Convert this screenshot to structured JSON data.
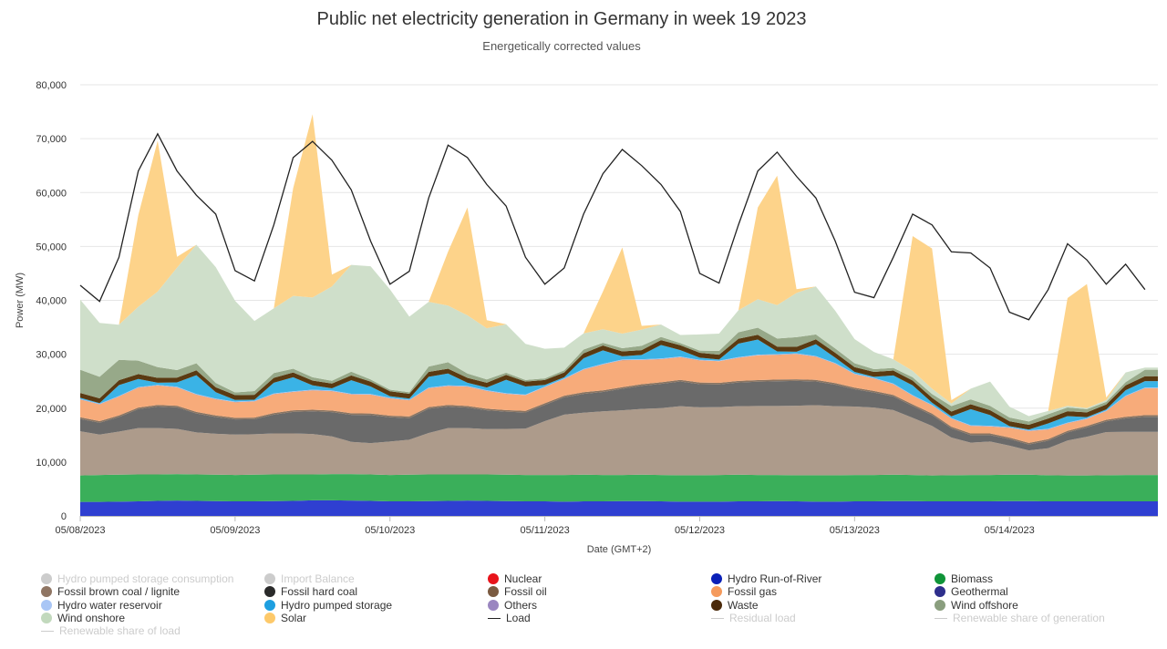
{
  "title": "Public net electricity generation in Germany in week 19 2023",
  "subtitle": "Energetically corrected values",
  "chart_data": {
    "type": "area",
    "stacked": true,
    "xlabel": "Date (GMT+2)",
    "ylabel": "Power (MW)",
    "ylim": [
      0,
      80000
    ],
    "yticks": [
      "0",
      "10,000",
      "20,000",
      "30,000",
      "40,000",
      "50,000",
      "60,000",
      "70,000",
      "80,000"
    ],
    "xticks": [
      "05/08/2023",
      "05/09/2023",
      "05/10/2023",
      "05/11/2023",
      "05/12/2023",
      "05/13/2023",
      "05/14/2023"
    ],
    "x_hours": [
      0,
      3,
      6,
      9,
      12,
      15,
      18,
      21,
      24,
      27,
      30,
      33,
      36,
      39,
      42,
      45,
      48,
      51,
      54,
      57,
      60,
      63,
      66,
      69,
      72,
      75,
      78,
      81,
      84,
      87,
      90,
      93,
      96,
      99,
      102,
      105,
      108,
      111,
      114,
      117,
      120,
      123,
      126,
      129,
      132,
      135,
      138,
      141,
      144,
      147,
      150,
      153,
      156,
      159,
      162,
      165
    ],
    "series": [
      {
        "name": "Hydro Run-of-River",
        "color": "#2f3fd1",
        "values": [
          2600,
          2600,
          2650,
          2700,
          2800,
          2850,
          2800,
          2750,
          2700,
          2700,
          2750,
          2800,
          2900,
          2900,
          2850,
          2800,
          2700,
          2700,
          2750,
          2800,
          2850,
          2800,
          2750,
          2700,
          2700,
          2650,
          2700,
          2700,
          2750,
          2750,
          2700,
          2650,
          2650,
          2650,
          2700,
          2700,
          2750,
          2700,
          2650,
          2650,
          2700,
          2700,
          2750,
          2750,
          2700,
          2700,
          2700,
          2700,
          2750,
          2750,
          2700,
          2700,
          2700,
          2700,
          2700,
          2700
        ]
      },
      {
        "name": "Biomass",
        "color": "#3aaf5a",
        "values": [
          4900,
          5000,
          5000,
          5000,
          4900,
          4900,
          4900,
          4900,
          4900,
          4950,
          4950,
          4900,
          4800,
          4850,
          4900,
          4900,
          4900,
          4950,
          4950,
          4900,
          4850,
          4900,
          4900,
          4900,
          4900,
          4950,
          4950,
          4900,
          4850,
          4900,
          4900,
          4900,
          4900,
          4950,
          4950,
          4900,
          4850,
          4850,
          4900,
          4900,
          4900,
          4900,
          4900,
          4850,
          4800,
          4850,
          4900,
          4900,
          4900,
          4900,
          4850,
          4800,
          4800,
          4850,
          4900,
          4900
        ]
      },
      {
        "name": "Fossil brown coal / lignite",
        "color": "#ad9b8b",
        "values": [
          8200,
          7500,
          8000,
          8600,
          8600,
          8400,
          7800,
          7600,
          7500,
          7500,
          7600,
          7600,
          7500,
          7000,
          6000,
          5800,
          6200,
          6500,
          7700,
          8600,
          8600,
          8400,
          8500,
          8600,
          10000,
          11200,
          11500,
          11800,
          12000,
          12200,
          12400,
          12800,
          12600,
          12600,
          12700,
          12800,
          12800,
          12900,
          13000,
          12800,
          12700,
          12500,
          12000,
          10600,
          9200,
          7000,
          6000,
          6200,
          5400,
          4500,
          5000,
          6500,
          7200,
          8000,
          8000,
          8000
        ]
      },
      {
        "name": "Fossil hard coal",
        "color": "#6a6a6a",
        "values": [
          2300,
          2200,
          2700,
          3500,
          4000,
          4000,
          3500,
          3100,
          2800,
          2800,
          3500,
          4000,
          4200,
          4500,
          5000,
          5200,
          4500,
          4000,
          4500,
          4000,
          3800,
          3500,
          3200,
          3000,
          3000,
          3200,
          3500,
          3600,
          4000,
          4300,
          4500,
          4600,
          4300,
          4200,
          4400,
          4500,
          4600,
          4600,
          4400,
          4000,
          3200,
          2800,
          2500,
          2200,
          2000,
          1700,
          1400,
          1200,
          1200,
          1100,
          1400,
          1500,
          1700,
          2000,
          2500,
          2800
        ]
      },
      {
        "name": "Fossil oil",
        "color": "#8a7461",
        "values": [
          300,
          300,
          300,
          300,
          300,
          300,
          300,
          300,
          300,
          300,
          300,
          300,
          300,
          300,
          300,
          300,
          300,
          300,
          300,
          300,
          300,
          300,
          300,
          300,
          300,
          300,
          300,
          300,
          300,
          300,
          300,
          300,
          300,
          300,
          300,
          300,
          300,
          300,
          300,
          300,
          300,
          300,
          300,
          300,
          300,
          300,
          300,
          300,
          300,
          300,
          300,
          300,
          300,
          300,
          300,
          300
        ]
      },
      {
        "name": "Fossil gas",
        "color": "#f7ab7a",
        "values": [
          3300,
          3100,
          3500,
          3700,
          3600,
          3400,
          3200,
          3000,
          2900,
          3000,
          3500,
          3400,
          3600,
          3600,
          3500,
          3500,
          3200,
          3000,
          3500,
          3500,
          3600,
          3300,
          3000,
          2900,
          3000,
          3100,
          4200,
          4800,
          5000,
          4500,
          4300,
          4200,
          4100,
          4000,
          4300,
          4600,
          4600,
          4700,
          4300,
          3600,
          2500,
          2300,
          2000,
          1600,
          1500,
          1500,
          1400,
          1300,
          1800,
          2200,
          1800,
          1400,
          1300,
          1600,
          3800,
          5000
        ]
      },
      {
        "name": "Geothermal",
        "color": "#2e2f8c",
        "values": [
          20,
          20,
          20,
          20,
          20,
          20,
          20,
          20,
          20,
          20,
          20,
          20,
          20,
          20,
          20,
          20,
          20,
          20,
          20,
          20,
          20,
          20,
          20,
          20,
          20,
          20,
          20,
          20,
          20,
          20,
          20,
          20,
          20,
          20,
          20,
          20,
          20,
          20,
          20,
          20,
          20,
          20,
          20,
          20,
          20,
          20,
          20,
          20,
          20,
          20,
          20,
          20,
          20,
          20,
          20,
          20
        ]
      },
      {
        "name": "Hydro water reservoir",
        "color": "#a9c6f5",
        "values": [
          100,
          100,
          100,
          100,
          100,
          100,
          100,
          100,
          100,
          100,
          100,
          100,
          100,
          100,
          100,
          100,
          100,
          100,
          100,
          100,
          100,
          100,
          100,
          100,
          100,
          100,
          100,
          100,
          100,
          100,
          100,
          100,
          100,
          100,
          100,
          100,
          100,
          100,
          100,
          100,
          100,
          100,
          100,
          100,
          100,
          100,
          100,
          100,
          100,
          100,
          100,
          100,
          100,
          100,
          100,
          100
        ]
      },
      {
        "name": "Hydro pumped storage",
        "color": "#3ab3e6",
        "values": [
          200,
          100,
          2000,
          1500,
          400,
          800,
          3500,
          1200,
          300,
          200,
          2000,
          2600,
          800,
          400,
          2500,
          1400,
          300,
          200,
          2000,
          2200,
          600,
          500,
          2500,
          1500,
          300,
          200,
          2000,
          2500,
          600,
          800,
          2500,
          1200,
          400,
          200,
          2500,
          2800,
          500,
          300,
          2200,
          1000,
          300,
          200,
          1500,
          1800,
          400,
          300,
          3000,
          2000,
          200,
          150,
          1000,
          1200,
          200,
          200,
          1000,
          1200
        ]
      },
      {
        "name": "Waste",
        "color": "#5a3a12",
        "values": [
          900,
          900,
          900,
          900,
          900,
          900,
          900,
          900,
          900,
          900,
          900,
          900,
          900,
          900,
          900,
          900,
          900,
          900,
          900,
          900,
          900,
          900,
          900,
          900,
          900,
          900,
          900,
          900,
          900,
          900,
          900,
          900,
          900,
          900,
          900,
          900,
          900,
          900,
          900,
          900,
          900,
          900,
          900,
          900,
          900,
          900,
          900,
          900,
          900,
          900,
          900,
          900,
          900,
          900,
          900,
          900
        ]
      },
      {
        "name": "Wind offshore",
        "color": "#97a989",
        "values": [
          4300,
          4000,
          3800,
          2500,
          2000,
          1400,
          1300,
          800,
          500,
          700,
          900,
          700,
          600,
          500,
          700,
          400,
          300,
          300,
          1000,
          1200,
          800,
          600,
          400,
          300,
          300,
          400,
          700,
          500,
          600,
          800,
          600,
          400,
          400,
          700,
          1200,
          1300,
          1500,
          1800,
          900,
          800,
          700,
          500,
          500,
          600,
          700,
          1000,
          900,
          800,
          700,
          600,
          800,
          700,
          600,
          500,
          600,
          1200
        ]
      },
      {
        "name": "Wind onshore",
        "color": "#cfdfca",
        "values": [
          13000,
          10000,
          6500,
          10000,
          14000,
          19000,
          22000,
          21500,
          17000,
          13000,
          12000,
          13500,
          14800,
          17500,
          19800,
          21000,
          18600,
          14000,
          12000,
          10500,
          10800,
          9500,
          9000,
          6700,
          5500,
          4200,
          3000,
          2500,
          2700,
          3000,
          2300,
          1500,
          3000,
          3200,
          4100,
          5300,
          6200,
          8200,
          8900,
          7000,
          4500,
          3200,
          1600,
          1200,
          1000,
          500,
          2000,
          4500,
          2000,
          1000,
          600,
          300,
          200,
          300,
          1800,
          400
        ]
      },
      {
        "name": "Solar",
        "color": "#fdd38a",
        "values": [
          0,
          0,
          0,
          17000,
          28000,
          2000,
          0,
          0,
          0,
          0,
          0,
          20000,
          34000,
          2200,
          0,
          0,
          0,
          0,
          0,
          10000,
          20000,
          1500,
          0,
          0,
          0,
          0,
          0,
          7000,
          16000,
          700,
          0,
          0,
          0,
          0,
          0,
          17000,
          24000,
          700,
          0,
          0,
          0,
          0,
          0,
          25000,
          26000,
          600,
          0,
          0,
          0,
          0,
          0,
          20000,
          23000,
          500,
          0,
          0
        ]
      }
    ],
    "load": {
      "name": "Load",
      "color": "#222222",
      "values": [
        42800,
        39800,
        48000,
        64000,
        70900,
        64000,
        59500,
        56000,
        45500,
        43600,
        54000,
        66500,
        69500,
        66000,
        60500,
        51000,
        43000,
        45400,
        59000,
        68800,
        66500,
        61500,
        57500,
        48000,
        43000,
        46000,
        56000,
        63500,
        68000,
        65000,
        61500,
        56500,
        45000,
        43200,
        54000,
        64000,
        67500,
        63000,
        59000,
        51000,
        41500,
        40500,
        48000,
        56000,
        54000,
        49000,
        48800,
        46000,
        37800,
        36400,
        42000,
        50500,
        47500,
        43000,
        46700,
        42000
      ]
    },
    "legend": [
      {
        "name": "Hydro pumped storage consumption",
        "color": "#cccccc",
        "marker": "dot",
        "hidden": true
      },
      {
        "name": "Import Balance",
        "color": "#cccccc",
        "marker": "dot",
        "hidden": true
      },
      {
        "name": "Nuclear",
        "color": "#e8141b",
        "marker": "dot",
        "hidden": false
      },
      {
        "name": "Hydro Run-of-River",
        "color": "#0a20b8",
        "marker": "dot",
        "hidden": false
      },
      {
        "name": "Biomass",
        "color": "#0f9438",
        "marker": "dot",
        "hidden": false
      },
      {
        "name": "Fossil brown coal / lignite",
        "color": "#8f7563",
        "marker": "dot",
        "hidden": false
      },
      {
        "name": "Fossil hard coal",
        "color": "#2a2a2a",
        "marker": "dot",
        "hidden": false
      },
      {
        "name": "Fossil oil",
        "color": "#7a5a40",
        "marker": "dot",
        "hidden": false
      },
      {
        "name": "Fossil gas",
        "color": "#f59a5c",
        "marker": "dot",
        "hidden": false
      },
      {
        "name": "Geothermal",
        "color": "#2e2f8c",
        "marker": "dot",
        "hidden": false
      },
      {
        "name": "Hydro water reservoir",
        "color": "#a9c6f5",
        "marker": "dot",
        "hidden": false
      },
      {
        "name": "Hydro pumped storage",
        "color": "#1e9fe0",
        "marker": "dot",
        "hidden": false
      },
      {
        "name": "Others",
        "color": "#9a86c0",
        "marker": "dot",
        "hidden": false
      },
      {
        "name": "Waste",
        "color": "#4a2a0a",
        "marker": "dot",
        "hidden": false
      },
      {
        "name": "Wind offshore",
        "color": "#8a9e7e",
        "marker": "dot",
        "hidden": false
      },
      {
        "name": "Wind onshore",
        "color": "#c2d9bd",
        "marker": "dot",
        "hidden": false
      },
      {
        "name": "Solar",
        "color": "#fdc96a",
        "marker": "dot",
        "hidden": false
      },
      {
        "name": "Load",
        "color": "#222222",
        "marker": "line",
        "hidden": false
      },
      {
        "name": "Residual load",
        "color": "#cccccc",
        "marker": "line",
        "hidden": true
      },
      {
        "name": "Renewable share of generation",
        "color": "#cccccc",
        "marker": "line",
        "hidden": true
      },
      {
        "name": "Renewable share of load",
        "color": "#cccccc",
        "marker": "line",
        "hidden": true
      }
    ]
  }
}
